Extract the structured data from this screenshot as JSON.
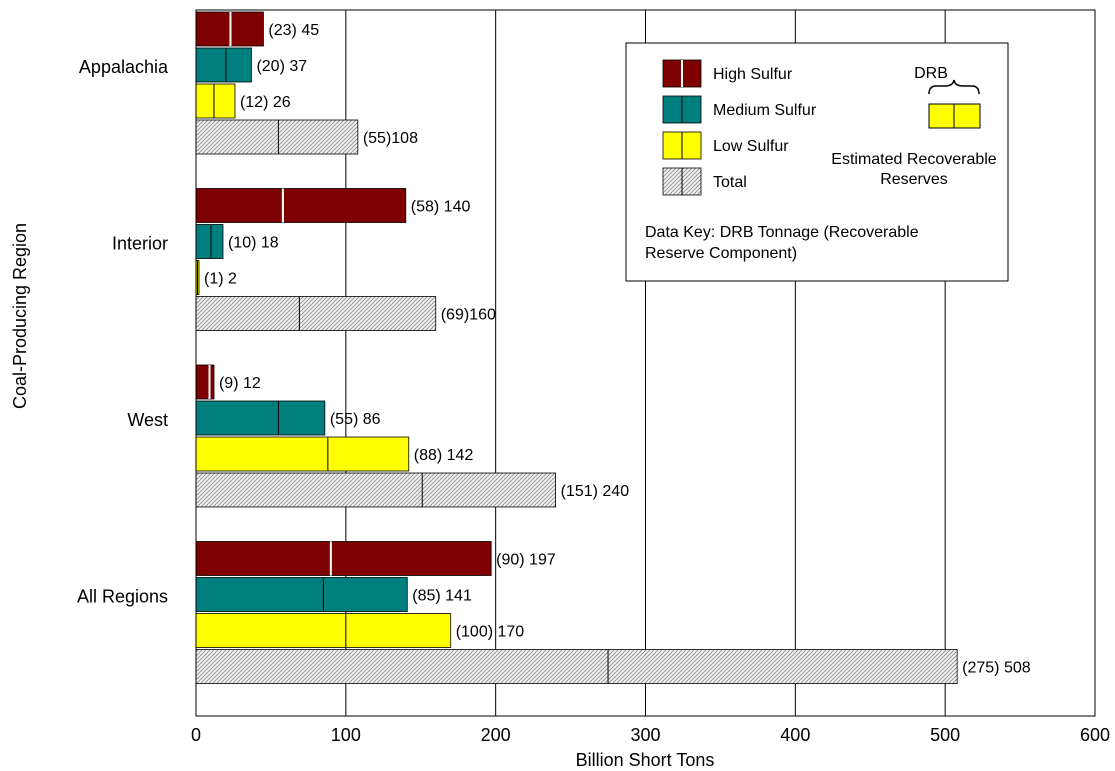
{
  "chart_data": {
    "type": "bar",
    "orientation": "horizontal",
    "title": "",
    "xlabel": "Billion Short Tons",
    "ylabel": "Coal-Producing Region",
    "xlim": [
      0,
      600
    ],
    "x_ticks": [
      0,
      100,
      200,
      300,
      400,
      500,
      600
    ],
    "grid": "vertical",
    "categories": [
      "Appalachia",
      "Interior",
      "West",
      "All Regions"
    ],
    "series": [
      {
        "name": "High Sulfur",
        "color": "#7f0000",
        "divider_color": "#ffffff",
        "pattern": "solid",
        "values": [
          45,
          140,
          12,
          197
        ],
        "drb": [
          23,
          58,
          9,
          90
        ],
        "labels": [
          "(23) 45",
          "(58) 140",
          "(9) 12",
          "(90) 197"
        ]
      },
      {
        "name": "Medium Sulfur",
        "color": "#007f7f",
        "divider_color": "#000000",
        "pattern": "solid",
        "values": [
          37,
          18,
          86,
          141
        ],
        "drb": [
          20,
          10,
          55,
          85
        ],
        "labels": [
          "(20) 37",
          "(10) 18",
          "(55) 86",
          "(85) 141"
        ]
      },
      {
        "name": "Low Sulfur",
        "color": "#ffff00",
        "divider_color": "#000000",
        "pattern": "solid",
        "values": [
          26,
          2,
          142,
          170
        ],
        "drb": [
          12,
          1,
          88,
          100
        ],
        "labels": [
          "(12) 26",
          "(1) 2",
          "(88) 142",
          "(100) 170"
        ]
      },
      {
        "name": "Total",
        "color": "#e0e0e0",
        "divider_color": "#000000",
        "pattern": "hatch",
        "values": [
          108,
          160,
          240,
          508
        ],
        "drb": [
          55,
          69,
          151,
          275
        ],
        "labels": [
          "(55)108",
          "(69)160",
          "(151) 240",
          "(275) 508"
        ]
      }
    ],
    "legend": {
      "placement": "top-right",
      "entries": [
        "High Sulfur",
        "Medium Sulfur",
        "Low Sulfur",
        "Total"
      ],
      "drb_label": "DRB",
      "err_label_line1": "Estimated Recoverable",
      "err_label_line2": "Reserves",
      "key_line1": "Data Key: DRB Tonnage (Recoverable",
      "key_line2": "Reserve Component)"
    }
  }
}
